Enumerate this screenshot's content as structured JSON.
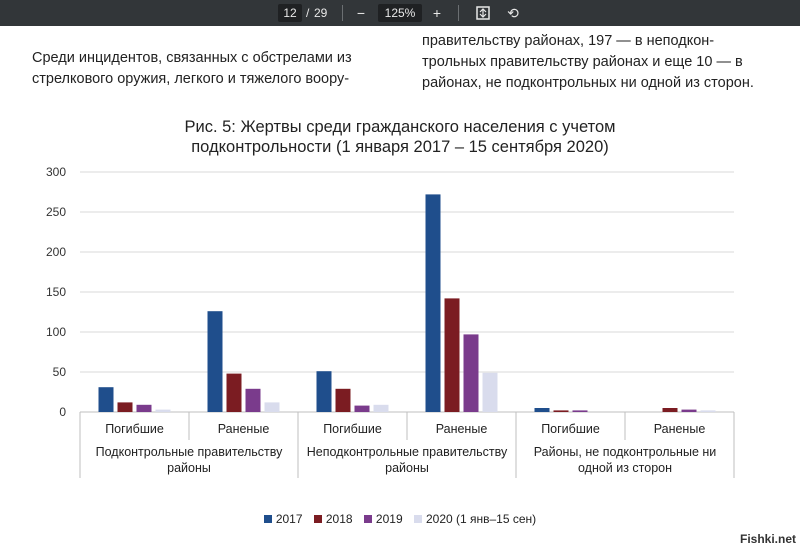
{
  "viewer": {
    "page_current": "12",
    "page_sep": "/",
    "page_total": "29",
    "zoom": "125%"
  },
  "body_text": {
    "left": [
      "Среди инцидентов, связанных с обстрелами из",
      "стрелкового оружия, легкого и тяжелого воору-"
    ],
    "right": [
      "правительству районах, 197 — в неподкон-",
      "трольных правительству районах и еще 10 — в",
      "районах, не подконтрольных ни одной из сторон."
    ]
  },
  "watermark": "Fishki.net",
  "colors": {
    "2017": "#1f4e8c",
    "2018": "#7b1c22",
    "2019": "#7a3b8c",
    "2020": "#d9dced"
  },
  "chart_data": {
    "type": "bar",
    "title_lines": [
      "Рис. 5: Жертвы среди гражданского населения с учетом",
      "подконтрольности (1 января 2017 – 15 сентября 2020)"
    ],
    "groups": [
      {
        "name_lines": [
          "Подконтрольные правительству",
          "районы"
        ],
        "categories": [
          "Погибшие",
          "Раненые"
        ]
      },
      {
        "name_lines": [
          "Неподконтрольные правительству",
          "районы"
        ],
        "categories": [
          "Погибшие",
          "Раненые"
        ]
      },
      {
        "name_lines": [
          "Районы, не подконтрольные ни",
          "одной из сторон"
        ],
        "categories": [
          "Погибшие",
          "Раненые"
        ]
      }
    ],
    "series": [
      {
        "name": "2017",
        "values": [
          31,
          126,
          51,
          272,
          5,
          0
        ]
      },
      {
        "name": "2018",
        "values": [
          12,
          48,
          29,
          142,
          2,
          5
        ]
      },
      {
        "name": "2019",
        "values": [
          9,
          29,
          8,
          97,
          2,
          3
        ]
      },
      {
        "name": "2020 (1 янв–15 сен)",
        "values": [
          3,
          12,
          9,
          49,
          0,
          2
        ]
      }
    ],
    "ylim": [
      0,
      300
    ],
    "yticks": [
      "0",
      "50",
      "100",
      "150",
      "200",
      "250",
      "300"
    ],
    "legend_position": "bottom",
    "grid": true
  }
}
